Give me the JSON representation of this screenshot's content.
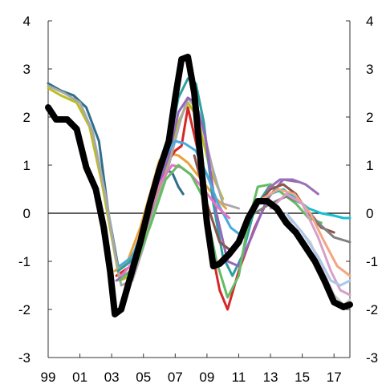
{
  "chart_data": {
    "type": "line",
    "title": "",
    "xlabel": "",
    "ylabel": "",
    "xlim": [
      1999,
      2018
    ],
    "ylim": [
      -3,
      4
    ],
    "grid": false,
    "legend": "none",
    "x_tick_values": [
      1999,
      2001,
      2003,
      2005,
      2007,
      2009,
      2011,
      2013,
      2015,
      2017
    ],
    "x_tick_labels": [
      "99",
      "01",
      "03",
      "05",
      "07",
      "09",
      "11",
      "13",
      "15",
      "17"
    ],
    "y_tick_values": [
      -3,
      -2,
      -1,
      0,
      1,
      2,
      3,
      4
    ],
    "y_tick_labels": [
      "-3",
      "-2",
      "-1",
      "0",
      "1",
      "2",
      "3",
      "4"
    ],
    "zero_line": true,
    "series": [
      {
        "color": "#2e6e8e",
        "width": 3,
        "x": [
          1999,
          1999.8,
          2000.6,
          2001.4,
          2002.2,
          2002.8,
          2003.4,
          2004.0,
          2004.6,
          2005.2,
          2005.8,
          2006.3,
          2006.8,
          2007.2,
          2007.5
        ],
        "y": [
          2.7,
          2.55,
          2.45,
          2.2,
          1.5,
          0.0,
          -1.1,
          -1.05,
          -0.7,
          -0.1,
          0.5,
          0.9,
          0.85,
          0.55,
          0.4
        ]
      },
      {
        "color": "#e8a33c",
        "width": 3,
        "x": [
          2003.2,
          2004.0,
          2004.8,
          2005.5,
          2006.0,
          2006.6,
          2007.2,
          2007.8,
          2008.4,
          2009.0,
          2009.6,
          2010.2
        ],
        "y": [
          -1.2,
          -1.0,
          -0.3,
          0.5,
          1.1,
          1.25,
          1.2,
          1.05,
          0.8,
          0.55,
          0.3,
          0.1
        ]
      },
      {
        "color": "#d62728",
        "width": 3,
        "x": [
          2003.3,
          2004.2,
          2005.0,
          2005.8,
          2006.4,
          2007.0,
          2007.4,
          2007.8,
          2008.5,
          2009.2,
          2009.8,
          2010.3,
          2011.0,
          2012.0,
          2013.0
        ],
        "y": [
          -1.3,
          -1.1,
          -0.3,
          0.6,
          1.0,
          1.3,
          1.4,
          2.2,
          1.2,
          -0.6,
          -1.6,
          -2.0,
          -1.2,
          -0.3,
          0.4
        ]
      },
      {
        "color": "#bcbd22",
        "width": 3,
        "x": [
          1999,
          1999.8,
          2000.8,
          2001.6,
          2002.4,
          2003.0,
          2003.5,
          2004.2,
          2005.0,
          2005.8,
          2006.6,
          2007.2,
          2007.8,
          2008.4,
          2009.2,
          2010.0
        ],
        "y": [
          2.6,
          2.45,
          2.3,
          1.8,
          0.6,
          -0.5,
          -1.4,
          -1.3,
          -0.6,
          0.3,
          1.1,
          1.9,
          2.3,
          2.0,
          0.9,
          0.3
        ]
      },
      {
        "color": "#a9a9a9",
        "width": 3,
        "x": [
          1999,
          2000.0,
          2001.0,
          2001.8,
          2002.6,
          2003.2,
          2003.6,
          2004.3,
          2005.0,
          2005.8,
          2006.6,
          2007.3,
          2007.8,
          2008.5,
          2009.3,
          2010.0,
          2011.0
        ],
        "y": [
          2.65,
          2.5,
          2.3,
          1.7,
          0.4,
          -0.8,
          -1.5,
          -1.4,
          -0.7,
          0.2,
          1.0,
          1.9,
          2.4,
          2.1,
          1.0,
          0.2,
          0.1
        ]
      },
      {
        "color": "#2ca0a0",
        "width": 3,
        "x": [
          2003.4,
          2004.2,
          2005.0,
          2005.8,
          2006.6,
          2007.2,
          2007.8,
          2008.3,
          2008.8,
          2009.4,
          2010.0,
          2010.6,
          2011.2,
          2012.0,
          2013.0
        ],
        "y": [
          -1.2,
          -1.0,
          -0.4,
          0.5,
          1.4,
          2.4,
          2.8,
          2.7,
          1.9,
          0.2,
          -0.9,
          -1.3,
          -0.9,
          0.1,
          0.6
        ]
      },
      {
        "color": "#9467bd",
        "width": 3,
        "x": [
          2003.3,
          2004.2,
          2005.0,
          2005.8,
          2006.6,
          2007.2,
          2007.8,
          2008.3,
          2008.9,
          2009.6,
          2010.3,
          2011.0,
          2011.8,
          2012.8,
          2013.8,
          2014.8
        ],
        "y": [
          -1.4,
          -1.2,
          -0.5,
          0.4,
          1.2,
          2.1,
          2.4,
          2.3,
          1.6,
          0.0,
          -1.0,
          -1.1,
          -0.5,
          0.3,
          0.7,
          0.65
        ]
      },
      {
        "color": "#4aaadf",
        "width": 3,
        "x": [
          2003.5,
          2004.3,
          2005.0,
          2005.7,
          2006.4,
          2007.0,
          2007.6,
          2008.3,
          2009.0,
          2009.7,
          2010.5,
          2011.3
        ],
        "y": [
          -1.1,
          -0.9,
          -0.3,
          0.5,
          1.2,
          1.5,
          1.45,
          1.3,
          0.8,
          0.2,
          -0.3,
          -0.5
        ]
      },
      {
        "color": "#e377c2",
        "width": 3,
        "x": [
          2003.6,
          2004.4,
          2005.2,
          2006.0,
          2006.8,
          2007.4,
          2008.0,
          2008.8,
          2009.6,
          2010.4
        ],
        "y": [
          -1.3,
          -1.0,
          -0.2,
          0.6,
          1.0,
          0.95,
          0.8,
          0.5,
          0.15,
          -0.1
        ]
      },
      {
        "color": "#66bb66",
        "width": 3,
        "x": [
          2003.5,
          2004.5,
          2005.5,
          2006.4,
          2007.2,
          2008.0,
          2008.8,
          2009.6,
          2010.3,
          2011.0,
          2011.6,
          2012.2,
          2013.0,
          2013.8,
          2014.6,
          2015.4,
          2016.2
        ],
        "y": [
          -1.4,
          -1.1,
          -0.2,
          0.7,
          1.0,
          0.8,
          0.3,
          -1.0,
          -1.75,
          -1.3,
          -0.2,
          0.55,
          0.6,
          0.4,
          0.2,
          -0.1,
          -0.2
        ]
      },
      {
        "color": "#8c564b",
        "width": 3,
        "x": [
          2008.2,
          2009.0,
          2009.8,
          2010.6,
          2011.4,
          2012.2,
          2013.0,
          2013.8,
          2014.6,
          2015.4,
          2016.2,
          2017.0
        ],
        "y": [
          1.2,
          0.2,
          -0.6,
          -0.8,
          -0.3,
          0.2,
          0.5,
          0.6,
          0.4,
          0.0,
          -0.3,
          -0.4
        ]
      },
      {
        "color": "#17becf",
        "width": 3,
        "x": [
          2011.5,
          2012.2,
          2013.0,
          2013.8,
          2014.6,
          2015.4,
          2016.2,
          2017.0,
          2017.6,
          2018.0
        ],
        "y": [
          -0.2,
          0.2,
          0.4,
          0.5,
          0.3,
          0.1,
          0.0,
          -0.05,
          -0.1,
          -0.1
        ]
      },
      {
        "color": "#7f7f7f",
        "width": 3,
        "x": [
          2012.0,
          2013.0,
          2014.0,
          2015.0,
          2016.0,
          2017.0,
          2018.0
        ],
        "y": [
          0.0,
          0.2,
          0.35,
          0.2,
          -0.2,
          -0.5,
          -0.6
        ]
      },
      {
        "color": "#f4a582",
        "width": 3,
        "x": [
          2012.5,
          2013.5,
          2014.5,
          2015.5,
          2016.4,
          2017.2,
          2018.0
        ],
        "y": [
          0.3,
          0.5,
          0.4,
          0.0,
          -0.6,
          -1.1,
          -1.3
        ]
      },
      {
        "color": "#d6a0c8",
        "width": 3,
        "x": [
          2013.0,
          2014.0,
          2015.0,
          2016.0,
          2016.8,
          2017.4,
          2018.0
        ],
        "y": [
          0.1,
          0.4,
          0.2,
          -0.5,
          -1.2,
          -1.6,
          -1.7
        ]
      },
      {
        "color": "#cccccc",
        "width": 3,
        "x": [
          2013.5,
          2014.5,
          2015.5,
          2016.3,
          2017.0,
          2017.6,
          2018.0
        ],
        "y": [
          0.0,
          -0.2,
          -0.6,
          -1.2,
          -1.7,
          -1.9,
          -1.8
        ]
      },
      {
        "color": "#aec7e8",
        "width": 3,
        "x": [
          2014.0,
          2015.0,
          2016.0,
          2016.8,
          2017.4,
          2018.0
        ],
        "y": [
          0.0,
          -0.4,
          -0.9,
          -1.4,
          -1.5,
          -1.4
        ]
      },
      {
        "color": "#9b6fb5",
        "width": 3,
        "x": [
          2012.8,
          2013.6,
          2014.4,
          2015.2,
          2016.0
        ],
        "y": [
          0.5,
          0.7,
          0.7,
          0.6,
          0.4
        ]
      },
      {
        "color": "#000000",
        "width": 8,
        "x": [
          1999,
          1999.5,
          2000.2,
          2000.8,
          2001.4,
          2002.0,
          2002.5,
          2002.9,
          2003.2,
          2003.6,
          2004.2,
          2004.8,
          2005.4,
          2006.0,
          2006.6,
          2007.0,
          2007.4,
          2007.8,
          2008.2,
          2008.6,
          2009.0,
          2009.4,
          2009.8,
          2010.4,
          2011.0,
          2011.6,
          2012.2,
          2012.8,
          2013.4,
          2014.0,
          2014.6,
          2015.2,
          2015.8,
          2016.4,
          2017.0,
          2017.6,
          2018.0
        ],
        "y": [
          2.2,
          1.95,
          1.95,
          1.75,
          0.95,
          0.5,
          -0.3,
          -1.2,
          -2.1,
          -2.0,
          -1.3,
          -0.6,
          0.2,
          0.9,
          1.5,
          2.4,
          3.2,
          3.25,
          2.5,
          1.1,
          -0.2,
          -1.1,
          -1.05,
          -0.85,
          -0.6,
          -0.1,
          0.25,
          0.25,
          0.1,
          -0.2,
          -0.4,
          -0.7,
          -1.0,
          -1.4,
          -1.85,
          -1.95,
          -1.9
        ]
      }
    ]
  }
}
